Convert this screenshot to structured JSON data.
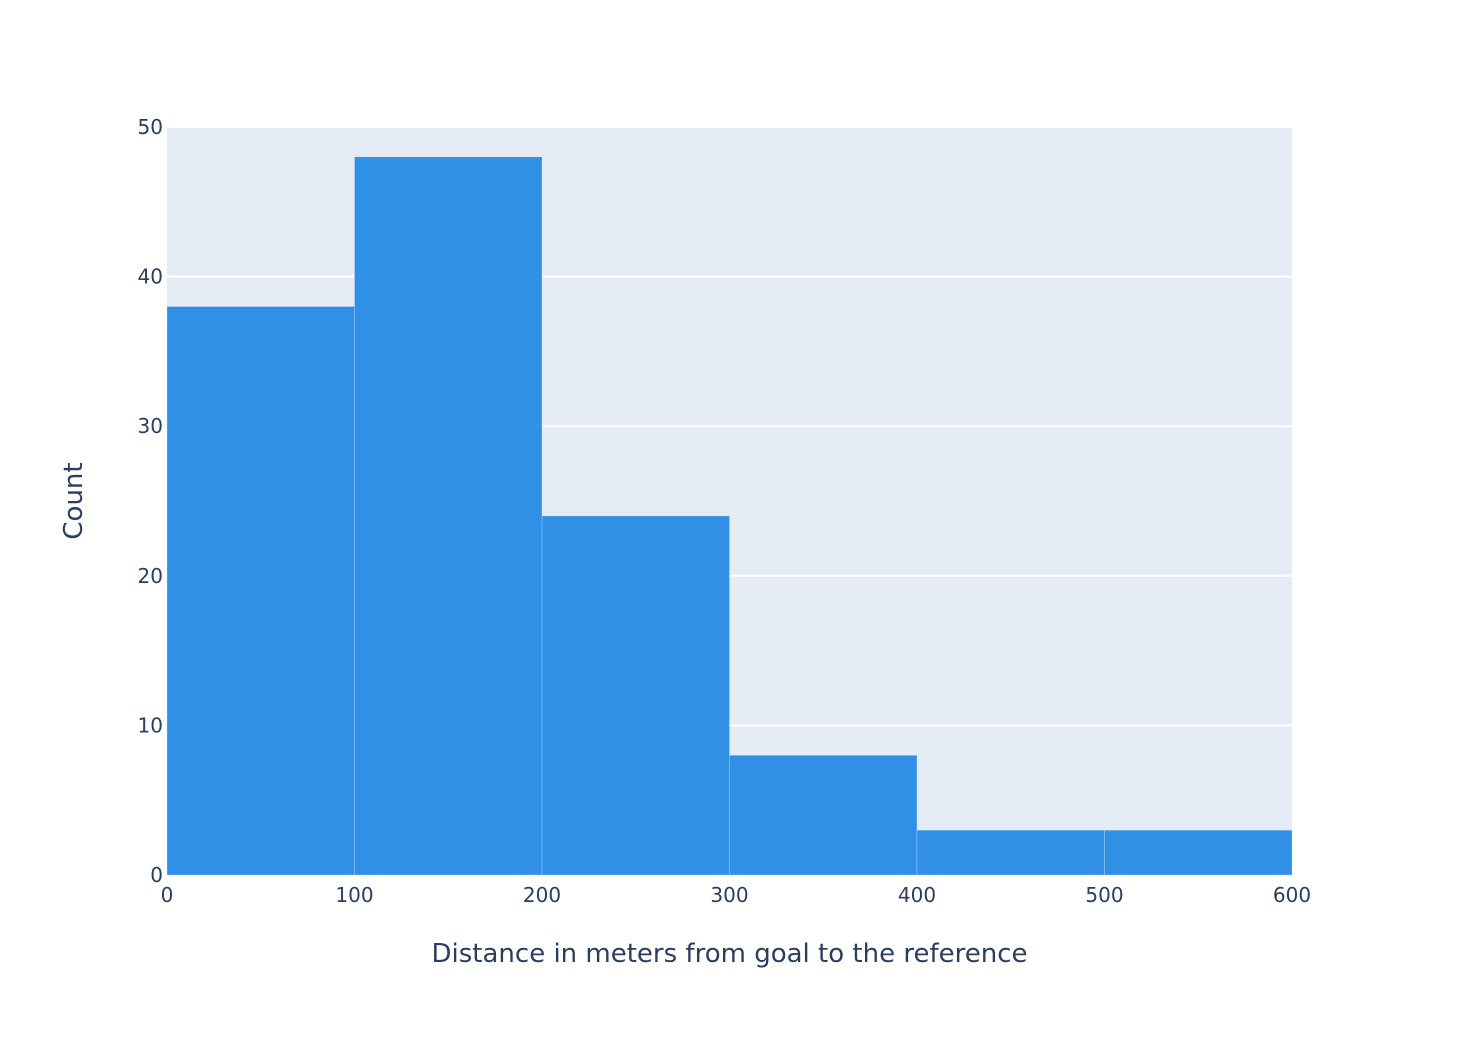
{
  "chart_data": {
    "type": "bar",
    "bin_edges": [
      0,
      100,
      200,
      300,
      400,
      500,
      600
    ],
    "values": [
      38,
      48,
      24,
      8,
      3,
      3
    ],
    "xlabel": "Distance in meters from goal to the reference",
    "ylabel": "Count",
    "xlim": [
      0,
      600
    ],
    "ylim": [
      0,
      50
    ],
    "x_ticks": [
      "0",
      "100",
      "200",
      "300",
      "400",
      "500",
      "600"
    ],
    "y_ticks": [
      "0",
      "10",
      "20",
      "30",
      "40",
      "50"
    ],
    "grid": true,
    "colors": {
      "bar": "#2f90e5",
      "plot_bg": "#e5ecf6",
      "grid": "#ffffff",
      "text": "#2a3f5f"
    }
  }
}
